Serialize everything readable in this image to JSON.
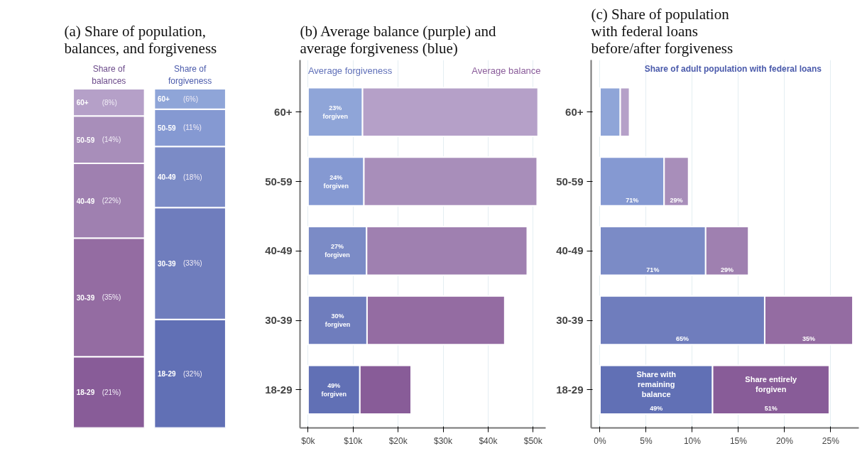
{
  "chart_data": [
    {
      "type": "bar",
      "title": "(a) Share of population, balances, and forgiveness",
      "categories": [
        "Share of balances",
        "Share of forgiveness"
      ],
      "stacked": true,
      "tick_labels": false,
      "grid": false,
      "legend": false,
      "series": [
        {
          "name": "18-29",
          "colors": [
            "#885c98",
            "#6170b5"
          ],
          "values": [
            21,
            32
          ],
          "value_labels": [
            "(21%)",
            "(32%)"
          ]
        },
        {
          "name": "30-39",
          "colors": [
            "#946ca2",
            "#6f7dbd"
          ],
          "values": [
            35,
            33
          ],
          "value_labels": [
            "(35%)",
            "(33%)"
          ]
        },
        {
          "name": "40-49",
          "colors": [
            "#9f80b0",
            "#7b8bc6"
          ],
          "values": [
            22,
            18
          ],
          "value_labels": [
            "(22%)",
            "(18%)"
          ]
        },
        {
          "name": "50-59",
          "colors": [
            "#a88eba",
            "#8599d2"
          ],
          "values": [
            14,
            11
          ],
          "value_labels": [
            "(14%)",
            "(11%)"
          ]
        },
        {
          "name": "60+",
          "colors": [
            "#b5a0c8",
            "#8fa5d8"
          ],
          "values": [
            8,
            6
          ],
          "value_labels": [
            "(8%)",
            "(6%)"
          ]
        }
      ]
    },
    {
      "type": "bar",
      "title": "(b) Average balance (purple) and average forgiveness (blue)",
      "orientation": "horizontal",
      "stacked": true,
      "categories": [
        "60+",
        "50-59",
        "40-49",
        "30-39",
        "18-29"
      ],
      "xlim": [
        -1.8,
        52.8
      ],
      "xticks": [
        {
          "value": 0,
          "label": "$0k"
        },
        {
          "value": 10,
          "label": "$10k"
        },
        {
          "value": 20,
          "label": "$20k"
        },
        {
          "value": 30,
          "label": "$30k"
        },
        {
          "value": 40,
          "label": "$40k"
        },
        {
          "value": 50,
          "label": "$50k"
        }
      ],
      "grid": "x",
      "legend": "top",
      "annotations": [
        "23%\nforgiven",
        "24%\nforgiven",
        "27%\nforgiven",
        "30%\nforgiven",
        "49%\nforgiven"
      ],
      "series": [
        {
          "name": "Average forgiveness",
          "color": "#5f6fb8",
          "colors": [
            "#8fa5d8",
            "#8599d2",
            "#7b8bc6",
            "#6f7dbd",
            "#6170b5"
          ],
          "values": [
            12.1,
            12.4,
            13.0,
            13.1,
            11.5
          ]
        },
        {
          "name": "Average balance",
          "color": "#8a5c9a",
          "colors": [
            "#b5a0c8",
            "#a88eba",
            "#9f80b0",
            "#946ca2",
            "#885c98"
          ],
          "values": [
            39.0,
            38.5,
            35.7,
            30.6,
            11.4
          ]
        }
      ]
    },
    {
      "type": "bar",
      "title": "(c) Share of population with federal loans before/after forgiveness",
      "orientation": "horizontal",
      "stacked": true,
      "categories": [
        "60+",
        "50-59",
        "40-49",
        "30-39",
        "18-29"
      ],
      "xlim": [
        -0.96,
        28.05
      ],
      "xticks": [
        {
          "value": 0,
          "label": "0%"
        },
        {
          "value": 5,
          "label": "5%"
        },
        {
          "value": 10,
          "label": "10%"
        },
        {
          "value": 15,
          "label": "15%"
        },
        {
          "value": 20,
          "label": "20%"
        },
        {
          "value": 25,
          "label": "25%"
        }
      ],
      "grid": "x",
      "legend": false,
      "subtitle": "Share of adult population with federal loans",
      "annotations": [
        "71%",
        "29%",
        "71%",
        "29%",
        "65%",
        "35%",
        "49%",
        "51%"
      ],
      "series": [
        {
          "name": "Share with remaining balance",
          "colors": [
            "#8fa5d8",
            "#8599d2",
            "#7b8bc6",
            "#6f7dbd",
            "#6170b5"
          ],
          "values": [
            2.2,
            6.95,
            11.45,
            17.85,
            12.2
          ]
        },
        {
          "name": "Share entirely forgiven",
          "colors": [
            "#b5a0c8",
            "#a88eba",
            "#9f80b0",
            "#946ca2",
            "#885c98"
          ],
          "values": [
            1.0,
            2.65,
            4.65,
            9.55,
            12.65
          ]
        }
      ]
    }
  ]
}
